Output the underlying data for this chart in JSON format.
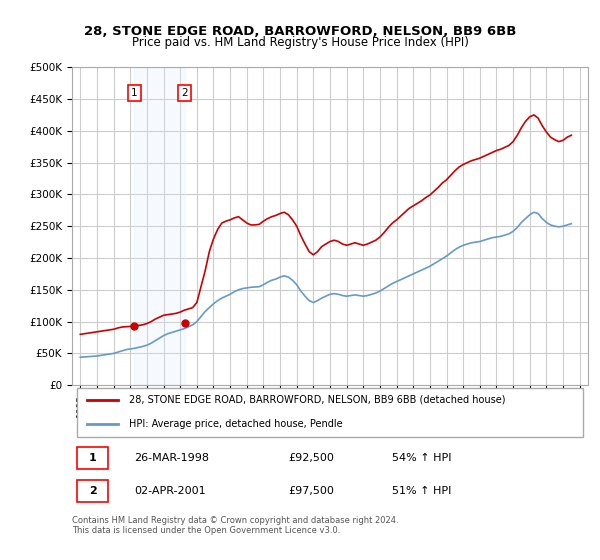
{
  "title": "28, STONE EDGE ROAD, BARROWFORD, NELSON, BB9 6BB",
  "subtitle": "Price paid vs. HM Land Registry's House Price Index (HPI)",
  "legend_line1": "28, STONE EDGE ROAD, BARROWFORD, NELSON, BB9 6BB (detached house)",
  "legend_line2": "HPI: Average price, detached house, Pendle",
  "footer": "Contains HM Land Registry data © Crown copyright and database right 2024.\nThis data is licensed under the Open Government Licence v3.0.",
  "table": [
    {
      "num": "1",
      "date": "26-MAR-1998",
      "price": "£92,500",
      "hpi": "54% ↑ HPI"
    },
    {
      "num": "2",
      "date": "02-APR-2001",
      "price": "£97,500",
      "hpi": "51% ↑ HPI"
    }
  ],
  "marker1_year": 1998.23,
  "marker2_year": 2001.26,
  "marker1_price": 92500,
  "marker2_price": 97500,
  "red_color": "#cc0000",
  "blue_color": "#6699cc",
  "background_color": "#ffffff",
  "grid_color": "#cccccc",
  "highlight_color": "#ddeeff",
  "ylim": [
    0,
    500000
  ],
  "xlim_start": 1994.5,
  "xlim_end": 2025.5,
  "hpi_data": {
    "years": [
      1995.0,
      1995.25,
      1995.5,
      1995.75,
      1996.0,
      1996.25,
      1996.5,
      1996.75,
      1997.0,
      1997.25,
      1997.5,
      1997.75,
      1998.0,
      1998.25,
      1998.5,
      1998.75,
      1999.0,
      1999.25,
      1999.5,
      1999.75,
      2000.0,
      2000.25,
      2000.5,
      2000.75,
      2001.0,
      2001.25,
      2001.5,
      2001.75,
      2002.0,
      2002.25,
      2002.5,
      2002.75,
      2003.0,
      2003.25,
      2003.5,
      2003.75,
      2004.0,
      2004.25,
      2004.5,
      2004.75,
      2005.0,
      2005.25,
      2005.5,
      2005.75,
      2006.0,
      2006.25,
      2006.5,
      2006.75,
      2007.0,
      2007.25,
      2007.5,
      2007.75,
      2008.0,
      2008.25,
      2008.5,
      2008.75,
      2009.0,
      2009.25,
      2009.5,
      2009.75,
      2010.0,
      2010.25,
      2010.5,
      2010.75,
      2011.0,
      2011.25,
      2011.5,
      2011.75,
      2012.0,
      2012.25,
      2012.5,
      2012.75,
      2013.0,
      2013.25,
      2013.5,
      2013.75,
      2014.0,
      2014.25,
      2014.5,
      2014.75,
      2015.0,
      2015.25,
      2015.5,
      2015.75,
      2016.0,
      2016.25,
      2016.5,
      2016.75,
      2017.0,
      2017.25,
      2017.5,
      2017.75,
      2018.0,
      2018.25,
      2018.5,
      2018.75,
      2019.0,
      2019.25,
      2019.5,
      2019.75,
      2020.0,
      2020.25,
      2020.5,
      2020.75,
      2021.0,
      2021.25,
      2021.5,
      2021.75,
      2022.0,
      2022.25,
      2022.5,
      2022.75,
      2023.0,
      2023.25,
      2023.5,
      2023.75,
      2024.0,
      2024.25,
      2024.5
    ],
    "values": [
      44000,
      44500,
      45000,
      45500,
      46000,
      47000,
      48000,
      49000,
      50000,
      52000,
      54000,
      56000,
      57000,
      58000,
      59500,
      61000,
      63000,
      66000,
      70000,
      74000,
      78000,
      81000,
      83000,
      85000,
      87000,
      89000,
      92000,
      95000,
      100000,
      108000,
      116000,
      122000,
      128000,
      133000,
      137000,
      140000,
      143000,
      147000,
      150000,
      152000,
      153000,
      154000,
      154500,
      155000,
      158000,
      162000,
      165000,
      167000,
      170000,
      172000,
      170000,
      165000,
      158000,
      148000,
      140000,
      133000,
      130000,
      133000,
      137000,
      140000,
      143000,
      144000,
      143000,
      141000,
      140000,
      141000,
      142000,
      141000,
      140000,
      141000,
      143000,
      145000,
      148000,
      152000,
      156000,
      160000,
      163000,
      166000,
      169000,
      172000,
      175000,
      178000,
      181000,
      184000,
      187000,
      191000,
      195000,
      199000,
      203000,
      208000,
      213000,
      217000,
      220000,
      222000,
      224000,
      225000,
      226000,
      228000,
      230000,
      232000,
      233000,
      234000,
      236000,
      238000,
      242000,
      248000,
      256000,
      262000,
      268000,
      272000,
      270000,
      262000,
      256000,
      252000,
      250000,
      249000,
      250000,
      252000,
      254000
    ]
  },
  "red_data": {
    "years": [
      1995.0,
      1995.25,
      1995.5,
      1995.75,
      1996.0,
      1996.25,
      1996.5,
      1996.75,
      1997.0,
      1997.25,
      1997.5,
      1997.75,
      1998.0,
      1998.25,
      1998.5,
      1998.75,
      1999.0,
      1999.25,
      1999.5,
      1999.75,
      2000.0,
      2000.25,
      2000.5,
      2000.75,
      2001.0,
      2001.25,
      2001.5,
      2001.75,
      2002.0,
      2002.25,
      2002.5,
      2002.75,
      2003.0,
      2003.25,
      2003.5,
      2003.75,
      2004.0,
      2004.25,
      2004.5,
      2004.75,
      2005.0,
      2005.25,
      2005.5,
      2005.75,
      2006.0,
      2006.25,
      2006.5,
      2006.75,
      2007.0,
      2007.25,
      2007.5,
      2007.75,
      2008.0,
      2008.25,
      2008.5,
      2008.75,
      2009.0,
      2009.25,
      2009.5,
      2009.75,
      2010.0,
      2010.25,
      2010.5,
      2010.75,
      2011.0,
      2011.25,
      2011.5,
      2011.75,
      2012.0,
      2012.25,
      2012.5,
      2012.75,
      2013.0,
      2013.25,
      2013.5,
      2013.75,
      2014.0,
      2014.25,
      2014.5,
      2014.75,
      2015.0,
      2015.25,
      2015.5,
      2015.75,
      2016.0,
      2016.25,
      2016.5,
      2016.75,
      2017.0,
      2017.25,
      2017.5,
      2017.75,
      2018.0,
      2018.25,
      2018.5,
      2018.75,
      2019.0,
      2019.25,
      2019.5,
      2019.75,
      2020.0,
      2020.25,
      2020.5,
      2020.75,
      2021.0,
      2021.25,
      2021.5,
      2021.75,
      2022.0,
      2022.25,
      2022.5,
      2022.75,
      2023.0,
      2023.25,
      2023.5,
      2023.75,
      2024.0,
      2024.25,
      2024.5
    ],
    "values": [
      80000,
      81000,
      82000,
      83000,
      84000,
      85000,
      86000,
      87000,
      88000,
      90000,
      91500,
      92000,
      92500,
      93000,
      94000,
      95000,
      97000,
      100000,
      104000,
      107000,
      110000,
      111000,
      112000,
      113000,
      115000,
      118000,
      120000,
      122000,
      130000,
      155000,
      180000,
      210000,
      230000,
      245000,
      255000,
      258000,
      260000,
      263000,
      265000,
      260000,
      255000,
      252000,
      252000,
      253000,
      258000,
      262000,
      265000,
      267000,
      270000,
      272000,
      268000,
      260000,
      250000,
      235000,
      222000,
      210000,
      205000,
      210000,
      218000,
      222000,
      226000,
      228000,
      226000,
      222000,
      220000,
      222000,
      224000,
      222000,
      220000,
      222000,
      225000,
      228000,
      233000,
      240000,
      248000,
      255000,
      260000,
      266000,
      272000,
      278000,
      282000,
      286000,
      290000,
      295000,
      299000,
      305000,
      311000,
      318000,
      323000,
      330000,
      337000,
      343000,
      347000,
      350000,
      353000,
      355000,
      357000,
      360000,
      363000,
      366000,
      369000,
      371000,
      374000,
      377000,
      383000,
      393000,
      405000,
      415000,
      422000,
      425000,
      420000,
      408000,
      398000,
      390000,
      386000,
      383000,
      385000,
      390000,
      393000
    ]
  }
}
